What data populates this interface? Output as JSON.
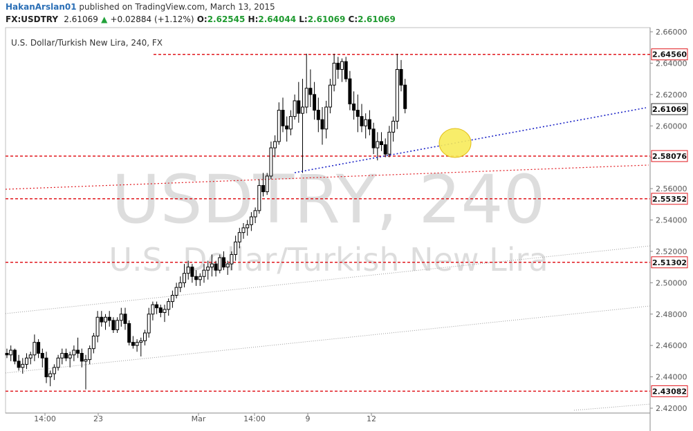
{
  "header": {
    "author": "HakanArslan01",
    "published": "published on TradingView.com, March 13, 2015",
    "symbol": "FX:USDTRY",
    "last": "2.61069",
    "change_arrow": "▲",
    "change": "+0.02884 (+1.12%)",
    "o_label": "O:",
    "open": "2.62545",
    "h_label": "H:",
    "high": "2.64044",
    "l_label": "L:",
    "low": "2.61069",
    "c_label": "C:",
    "close": "2.61069"
  },
  "chart_data": {
    "type": "candlestick",
    "title": "U.S. Dollar/Turkish New Lira, 240, FX",
    "watermark_symbol": "USDTRY, 240",
    "watermark_name": "U.S. Dollar/Turkish New Lira",
    "ylim": [
      2.42,
      2.66
    ],
    "yticks": [
      "2.66000",
      "2.64000",
      "2.62000",
      "2.60000",
      "2.58000",
      "2.56000",
      "2.54000",
      "2.52000",
      "2.50000",
      "2.48000",
      "2.46000",
      "2.44000",
      "2.42000"
    ],
    "xticks": [
      "14:00",
      "23",
      "Mar",
      "14:00",
      "9",
      "12"
    ],
    "current_price": "2.61069",
    "horizontal_levels": [
      "2.64560",
      "2.58076",
      "2.55352",
      "2.51302",
      "2.43082"
    ],
    "candles": [
      [
        2.455,
        2.458,
        2.452,
        2.454
      ],
      [
        2.454,
        2.46,
        2.45,
        2.457
      ],
      [
        2.457,
        2.458,
        2.448,
        2.45
      ],
      [
        2.45,
        2.454,
        2.444,
        2.446
      ],
      [
        2.446,
        2.452,
        2.442,
        2.448
      ],
      [
        2.448,
        2.455,
        2.445,
        2.452
      ],
      [
        2.452,
        2.456,
        2.448,
        2.454
      ],
      [
        2.454,
        2.467,
        2.45,
        2.462
      ],
      [
        2.462,
        2.464,
        2.452,
        2.455
      ],
      [
        2.455,
        2.458,
        2.446,
        2.452
      ],
      [
        2.452,
        2.456,
        2.436,
        2.44
      ],
      [
        2.44,
        2.444,
        2.434,
        2.442
      ],
      [
        2.442,
        2.448,
        2.438,
        2.446
      ],
      [
        2.446,
        2.454,
        2.444,
        2.452
      ],
      [
        2.452,
        2.458,
        2.448,
        2.455
      ],
      [
        2.455,
        2.458,
        2.45,
        2.452
      ],
      [
        2.452,
        2.456,
        2.446,
        2.454
      ],
      [
        2.454,
        2.46,
        2.45,
        2.457
      ],
      [
        2.457,
        2.465,
        2.452,
        2.455
      ],
      [
        2.455,
        2.458,
        2.446,
        2.45
      ],
      [
        2.45,
        2.454,
        2.432,
        2.451
      ],
      [
        2.451,
        2.46,
        2.448,
        2.458
      ],
      [
        2.458,
        2.468,
        2.455,
        2.466
      ],
      [
        2.466,
        2.482,
        2.462,
        2.478
      ],
      [
        2.478,
        2.482,
        2.472,
        2.475
      ],
      [
        2.475,
        2.48,
        2.47,
        2.478
      ],
      [
        2.478,
        2.482,
        2.472,
        2.476
      ],
      [
        2.476,
        2.478,
        2.468,
        2.47
      ],
      [
        2.47,
        2.478,
        2.468,
        2.476
      ],
      [
        2.476,
        2.484,
        2.472,
        2.48
      ],
      [
        2.48,
        2.484,
        2.47,
        2.474
      ],
      [
        2.474,
        2.476,
        2.46,
        2.462
      ],
      [
        2.462,
        2.466,
        2.458,
        2.46
      ],
      [
        2.46,
        2.464,
        2.456,
        2.462
      ],
      [
        2.462,
        2.465,
        2.453,
        2.463
      ],
      [
        2.463,
        2.47,
        2.46,
        2.468
      ],
      [
        2.468,
        2.484,
        2.465,
        2.48
      ],
      [
        2.48,
        2.488,
        2.476,
        2.486
      ],
      [
        2.486,
        2.488,
        2.48,
        2.484
      ],
      [
        2.484,
        2.486,
        2.478,
        2.481
      ],
      [
        2.481,
        2.486,
        2.475,
        2.483
      ],
      [
        2.483,
        2.49,
        2.479,
        2.488
      ],
      [
        2.488,
        2.495,
        2.484,
        2.492
      ],
      [
        2.492,
        2.5,
        2.49,
        2.497
      ],
      [
        2.497,
        2.504,
        2.494,
        2.5
      ],
      [
        2.5,
        2.512,
        2.497,
        2.506
      ],
      [
        2.506,
        2.514,
        2.502,
        2.51
      ],
      [
        2.51,
        2.512,
        2.5,
        2.504
      ],
      [
        2.504,
        2.508,
        2.498,
        2.502
      ],
      [
        2.502,
        2.506,
        2.498,
        2.504
      ],
      [
        2.504,
        2.512,
        2.5,
        2.508
      ],
      [
        2.508,
        2.514,
        2.502,
        2.51
      ],
      [
        2.51,
        2.518,
        2.504,
        2.512
      ],
      [
        2.512,
        2.514,
        2.504,
        2.508
      ],
      [
        2.508,
        2.518,
        2.506,
        2.516
      ],
      [
        2.516,
        2.52,
        2.508,
        2.51
      ],
      [
        2.51,
        2.514,
        2.505,
        2.512
      ],
      [
        2.512,
        2.52,
        2.508,
        2.518
      ],
      [
        2.518,
        2.53,
        2.514,
        2.526
      ],
      [
        2.526,
        2.535,
        2.522,
        2.532
      ],
      [
        2.532,
        2.538,
        2.528,
        2.535
      ],
      [
        2.535,
        2.54,
        2.53,
        2.537
      ],
      [
        2.537,
        2.545,
        2.533,
        2.542
      ],
      [
        2.542,
        2.548,
        2.538,
        2.546
      ],
      [
        2.546,
        2.566,
        2.544,
        2.562
      ],
      [
        2.562,
        2.57,
        2.555,
        2.558
      ],
      [
        2.558,
        2.57,
        2.556,
        2.568
      ],
      [
        2.568,
        2.59,
        2.566,
        2.586
      ],
      [
        2.586,
        2.594,
        2.58,
        2.59
      ],
      [
        2.59,
        2.615,
        2.588,
        2.61
      ],
      [
        2.61,
        2.618,
        2.596,
        2.6
      ],
      [
        2.6,
        2.606,
        2.59,
        2.598
      ],
      [
        2.598,
        2.61,
        2.594,
        2.606
      ],
      [
        2.606,
        2.62,
        2.604,
        2.616
      ],
      [
        2.616,
        2.628,
        2.602,
        2.608
      ],
      [
        2.608,
        2.63,
        2.57,
        2.612
      ],
      [
        2.612,
        2.646,
        2.608,
        2.624
      ],
      [
        2.624,
        2.636,
        2.612,
        2.62
      ],
      [
        2.62,
        2.628,
        2.604,
        2.61
      ],
      [
        2.61,
        2.618,
        2.596,
        2.604
      ],
      [
        2.604,
        2.612,
        2.588,
        2.598
      ],
      [
        2.598,
        2.616,
        2.592,
        2.612
      ],
      [
        2.612,
        2.63,
        2.608,
        2.626
      ],
      [
        2.626,
        2.646,
        2.622,
        2.64
      ],
      [
        2.64,
        2.644,
        2.63,
        2.636
      ],
      [
        2.636,
        2.643,
        2.628,
        2.641
      ],
      [
        2.641,
        2.644,
        2.628,
        2.63
      ],
      [
        2.63,
        2.635,
        2.61,
        2.614
      ],
      [
        2.614,
        2.622,
        2.604,
        2.61
      ],
      [
        2.61,
        2.62,
        2.596,
        2.606
      ],
      [
        2.606,
        2.614,
        2.596,
        2.6
      ],
      [
        2.6,
        2.608,
        2.592,
        2.604
      ],
      [
        2.604,
        2.61,
        2.594,
        2.598
      ],
      [
        2.598,
        2.602,
        2.582,
        2.586
      ],
      [
        2.586,
        2.596,
        2.578,
        2.59
      ],
      [
        2.59,
        2.596,
        2.584,
        2.588
      ],
      [
        2.588,
        2.592,
        2.58,
        2.582
      ],
      [
        2.582,
        2.6,
        2.58,
        2.596
      ],
      [
        2.596,
        2.606,
        2.59,
        2.603
      ],
      [
        2.603,
        2.646,
        2.598,
        2.636
      ],
      [
        2.636,
        2.642,
        2.622,
        2.626
      ],
      [
        2.626,
        2.63,
        2.608,
        2.611
      ]
    ]
  },
  "styles": {
    "level_color": "#e0161c",
    "trend_blue": "#1b23c6",
    "trend_red": "#e0161c",
    "watermark_color": "#dddddd",
    "highlight_fill": "#f8ec5a",
    "highlight_stroke": "#e0b800"
  }
}
